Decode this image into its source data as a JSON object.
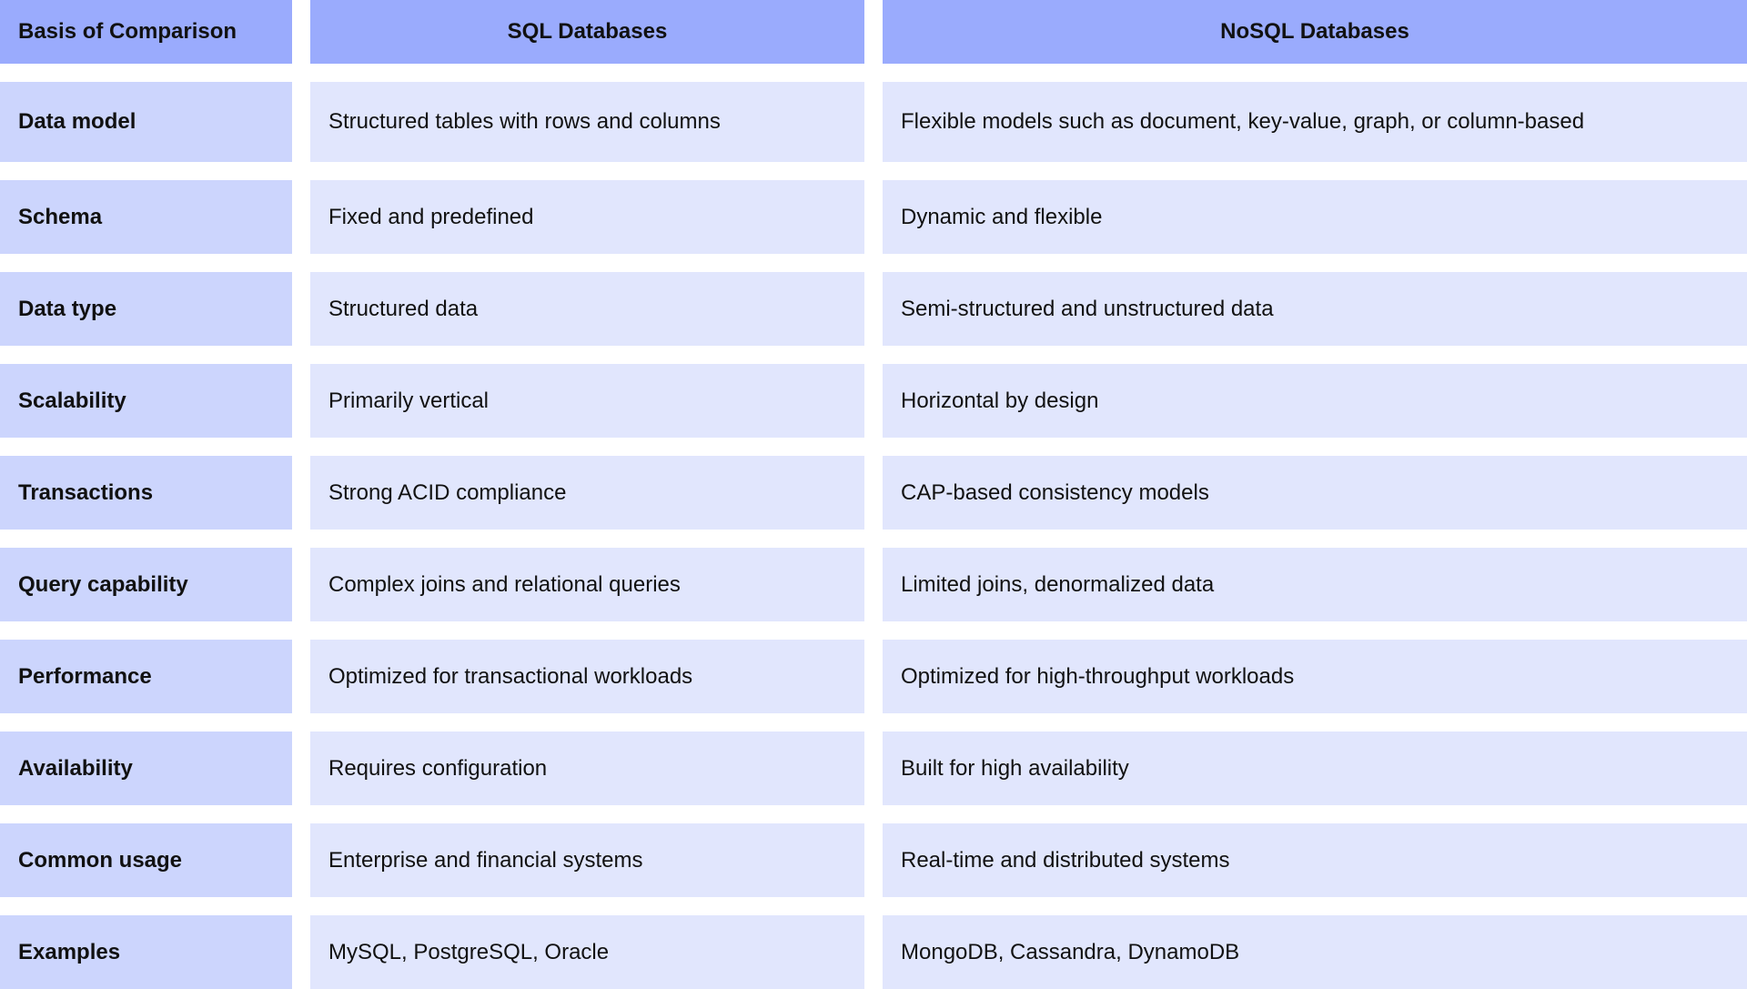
{
  "headers": [
    "Basis of Comparison",
    "SQL Databases",
    "NoSQL Databases"
  ],
  "rows": [
    {
      "basis": "Data model",
      "sql": "Structured tables with rows and columns",
      "nosql": "Flexible models such as document, key-value, graph, or column-based"
    },
    {
      "basis": "Schema",
      "sql": "Fixed and predefined",
      "nosql": "Dynamic and flexible"
    },
    {
      "basis": "Data type",
      "sql": "Structured data",
      "nosql": "Semi-structured and unstructured data"
    },
    {
      "basis": "Scalability",
      "sql": "Primarily vertical",
      "nosql": "Horizontal by design"
    },
    {
      "basis": "Transactions",
      "sql": "Strong ACID compliance",
      "nosql": "CAP-based consistency models"
    },
    {
      "basis": "Query capability",
      "sql": "Complex joins and relational queries",
      "nosql": "Limited joins, denormalized data"
    },
    {
      "basis": "Performance",
      "sql": "Optimized for transactional workloads",
      "nosql": "Optimized for high-throughput workloads"
    },
    {
      "basis": "Availability",
      "sql": "Requires configuration",
      "nosql": "Built for high availability"
    },
    {
      "basis": "Common usage",
      "sql": "Enterprise and financial systems",
      "nosql": "Real-time and distributed systems"
    },
    {
      "basis": "Examples",
      "sql": "MySQL, PostgreSQL, Oracle",
      "nosql": "MongoDB, Cassandra, DynamoDB"
    }
  ],
  "colors": {
    "header": "#9aabfd",
    "key_column": "#ccd5fd",
    "value_cells": "#e1e6fd"
  }
}
